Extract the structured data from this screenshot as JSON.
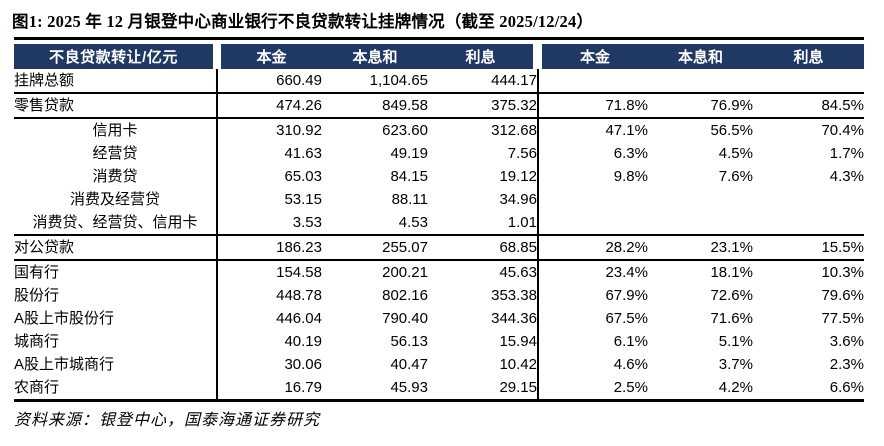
{
  "page": {
    "title": "图1:  2025 年 12 月银登中心商业银行不良贷款转让挂牌情况（截至 2025/12/24）",
    "source": "资料来源：银登中心，国泰海通证券研究"
  },
  "colors": {
    "header_bg": "#1f3864",
    "header_text": "#ffffff",
    "rule": "#000000"
  },
  "table": {
    "unit_header": "不良贷款转让/亿元",
    "amount_headers": [
      "本金",
      "本息和",
      "利息"
    ],
    "share_headers": [
      "本金",
      "本息和",
      "利息"
    ],
    "rows": [
      {
        "label": "挂牌总额",
        "indent": "none",
        "rule": true,
        "values": [
          "660.49",
          "1,104.65",
          "444.17"
        ],
        "shares": [
          "",
          "",
          ""
        ]
      },
      {
        "label": "零售贷款",
        "indent": "small",
        "rule": true,
        "values": [
          "474.26",
          "849.58",
          "375.32"
        ],
        "shares": [
          "71.8%",
          "76.9%",
          "84.5%"
        ]
      },
      {
        "label": "信用卡",
        "indent": "center",
        "rule": false,
        "values": [
          "310.92",
          "623.60",
          "312.68"
        ],
        "shares": [
          "47.1%",
          "56.5%",
          "70.4%"
        ]
      },
      {
        "label": "经营贷",
        "indent": "center",
        "rule": false,
        "values": [
          "41.63",
          "49.19",
          "7.56"
        ],
        "shares": [
          "6.3%",
          "4.5%",
          "1.7%"
        ]
      },
      {
        "label": "消费贷",
        "indent": "center",
        "rule": false,
        "values": [
          "65.03",
          "84.15",
          "19.12"
        ],
        "shares": [
          "9.8%",
          "7.6%",
          "4.3%"
        ]
      },
      {
        "label": "消费及经营贷",
        "indent": "center",
        "rule": false,
        "values": [
          "53.15",
          "88.11",
          "34.96"
        ],
        "shares": [
          "",
          "",
          ""
        ]
      },
      {
        "label": "消费贷、经营贷、信用卡",
        "indent": "center",
        "rule": true,
        "values": [
          "3.53",
          "4.53",
          "1.01"
        ],
        "shares": [
          "",
          "",
          ""
        ]
      },
      {
        "label": "对公贷款",
        "indent": "none",
        "rule": true,
        "values": [
          "186.23",
          "255.07",
          "68.85"
        ],
        "shares": [
          "28.2%",
          "23.1%",
          "15.5%"
        ]
      },
      {
        "label": "国有行",
        "indent": "none",
        "rule": false,
        "values": [
          "154.58",
          "200.21",
          "45.63"
        ],
        "shares": [
          "23.4%",
          "18.1%",
          "10.3%"
        ]
      },
      {
        "label": "股份行",
        "indent": "none",
        "rule": false,
        "values": [
          "448.78",
          "802.16",
          "353.38"
        ],
        "shares": [
          "67.9%",
          "72.6%",
          "79.6%"
        ]
      },
      {
        "label": "A股上市股份行",
        "indent": "large",
        "rule": false,
        "values": [
          "446.04",
          "790.40",
          "344.36"
        ],
        "shares": [
          "67.5%",
          "71.6%",
          "77.5%"
        ]
      },
      {
        "label": "城商行",
        "indent": "none",
        "rule": false,
        "values": [
          "40.19",
          "56.13",
          "15.94"
        ],
        "shares": [
          "6.1%",
          "5.1%",
          "3.6%"
        ]
      },
      {
        "label": "A股上市城商行",
        "indent": "large",
        "rule": false,
        "values": [
          "30.06",
          "40.47",
          "10.42"
        ],
        "shares": [
          "4.6%",
          "3.7%",
          "2.3%"
        ]
      },
      {
        "label": "农商行",
        "indent": "none",
        "rule": false,
        "values": [
          "16.79",
          "45.93",
          "29.15"
        ],
        "shares": [
          "2.5%",
          "4.2%",
          "6.6%"
        ]
      }
    ]
  }
}
